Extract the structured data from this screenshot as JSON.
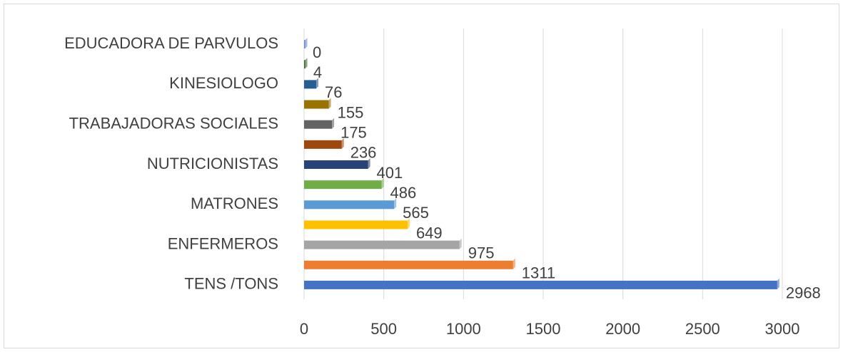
{
  "chart_data": {
    "type": "bar",
    "orientation": "horizontal",
    "categories": [
      "TENS /TONS",
      null,
      "ENFERMEROS",
      null,
      "MATRONES",
      null,
      "NUTRICIONISTAS",
      null,
      "TRABAJADORAS SOCIALES",
      null,
      "KINESIOLOGO",
      null,
      "EDUCADORA DE PARVULOS"
    ],
    "values": [
      2968,
      1311,
      975,
      649,
      565,
      486,
      401,
      236,
      175,
      155,
      76,
      4,
      0
    ],
    "colors": [
      "#4472c4",
      "#ed7d31",
      "#a5a5a5",
      "#ffc000",
      "#5b9bd5",
      "#70ad47",
      "#264478",
      "#9e480e",
      "#636363",
      "#997300",
      "#255e91",
      "#43682b",
      "#698ed0"
    ],
    "xlim": [
      0,
      3000
    ],
    "xticks": [
      0,
      500,
      1000,
      1500,
      2000,
      2500,
      3000
    ],
    "grid": true
  }
}
